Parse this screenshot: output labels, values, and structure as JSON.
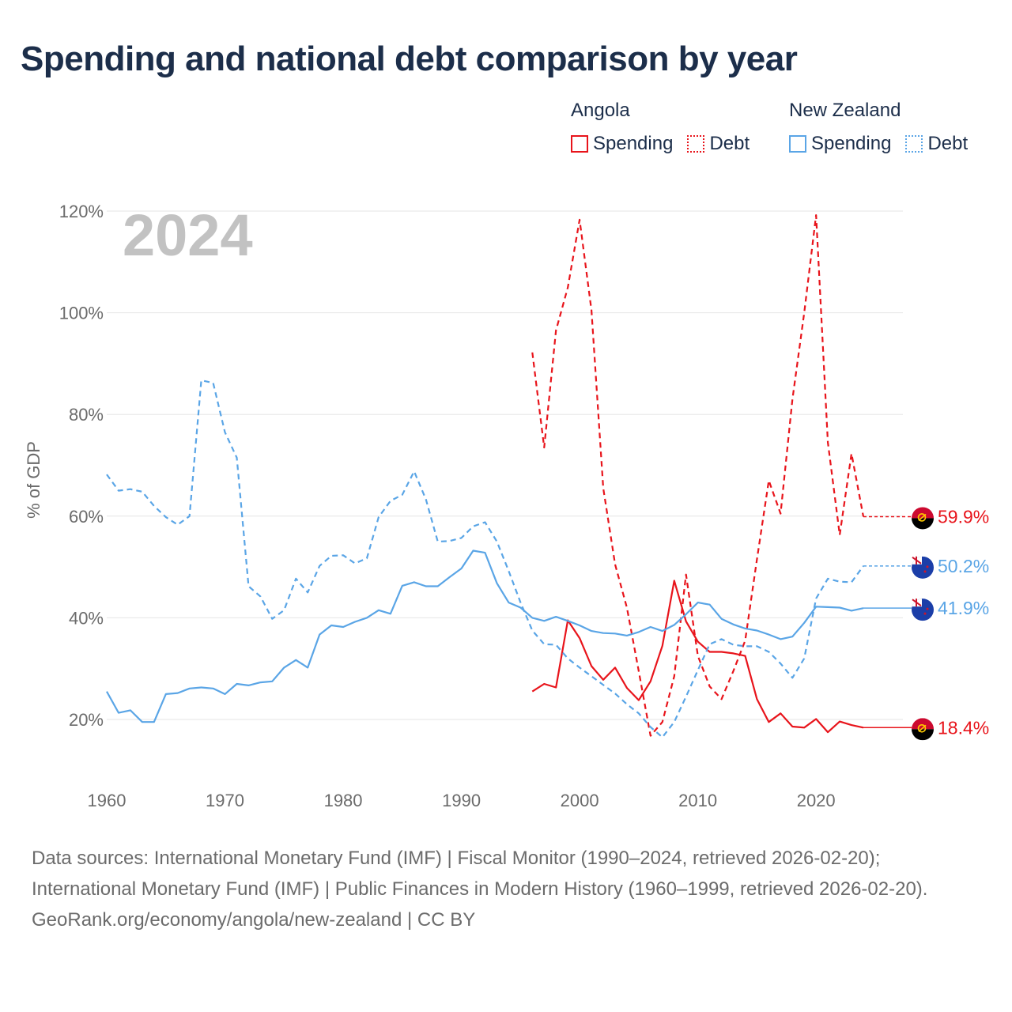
{
  "title": "Spending and national debt comparison by year",
  "colors": {
    "angola": "#e8141b",
    "new_zealand": "#5aa5e6",
    "title": "#1c2e4a",
    "grid": "#e6e6e6",
    "axis_text": "#6b6b6b",
    "year_watermark": "#c2c2c2"
  },
  "legend": {
    "groups": [
      {
        "name": "Angola",
        "spending_label": "Spending",
        "debt_label": "Debt"
      },
      {
        "name": "New Zealand",
        "spending_label": "Spending",
        "debt_label": "Debt"
      }
    ]
  },
  "year_label": "2024",
  "footer": {
    "sources": "Data sources: International Monetary Fund (IMF) | Fiscal Monitor (1990–2024, retrieved 2026-02-20); International Monetary Fund (IMF) | Public Finances in Modern History (1960–1999, retrieved 2026-02-20).",
    "credit": "GeoRank.org/economy/angola/new-zealand | CC BY"
  },
  "chart_data": {
    "type": "line",
    "title": "Spending and national debt comparison by year",
    "xlabel": "",
    "ylabel": "% of GDP",
    "xlim": [
      1960,
      2025
    ],
    "ylim": [
      10,
      120
    ],
    "xticks": [
      1960,
      1970,
      1980,
      1990,
      2000,
      2010,
      2020
    ],
    "yticks": [
      20,
      40,
      60,
      80,
      100,
      120
    ],
    "ytick_labels": [
      "20%",
      "40%",
      "60%",
      "80%",
      "100%",
      "120%"
    ],
    "grid": true,
    "legend_position": "top-right",
    "series": [
      {
        "name": "Angola Spending",
        "country": "Angola",
        "metric": "Spending",
        "color_key": "angola",
        "dash": "solid",
        "end_label": "18.4%",
        "x": [
          1996,
          1997,
          1998,
          1999,
          2000,
          2001,
          2002,
          2003,
          2004,
          2005,
          2006,
          2007,
          2008,
          2009,
          2010,
          2011,
          2012,
          2013,
          2014,
          2015,
          2016,
          2017,
          2018,
          2019,
          2020,
          2021,
          2022,
          2023,
          2024
        ],
        "values": [
          25.5,
          27,
          26.3,
          39.5,
          36,
          30.5,
          27.8,
          30.2,
          26.2,
          23.8,
          27.5,
          34.5,
          47.3,
          39.3,
          35.3,
          33.3,
          33.3,
          33,
          32.5,
          24,
          19.5,
          21.2,
          18.6,
          18.4,
          20.1,
          17.5,
          19.6,
          18.9,
          18.4
        ]
      },
      {
        "name": "Angola Debt",
        "country": "Angola",
        "metric": "Debt",
        "color_key": "angola",
        "dash": "dashed",
        "end_label": "59.9%",
        "x": [
          1996,
          1997,
          1998,
          1999,
          2000,
          2001,
          2002,
          2003,
          2004,
          2005,
          2006,
          2007,
          2008,
          2009,
          2010,
          2011,
          2012,
          2013,
          2014,
          2015,
          2016,
          2017,
          2018,
          2019,
          2020,
          2021,
          2022,
          2023,
          2024
        ],
        "values": [
          92.2,
          73.5,
          96.5,
          105,
          118.3,
          100.5,
          65.5,
          50.5,
          42,
          29.5,
          16.8,
          19.5,
          28.5,
          48.5,
          32.5,
          26.5,
          24,
          29.5,
          35.5,
          51.5,
          67,
          60.5,
          83,
          100,
          119.2,
          74.5,
          56.3,
          72.3,
          59.9
        ]
      },
      {
        "name": "New Zealand Spending",
        "country": "New Zealand",
        "metric": "Spending",
        "color_key": "new_zealand",
        "dash": "solid",
        "end_label": "41.9%",
        "x": [
          1960,
          1961,
          1962,
          1963,
          1964,
          1965,
          1966,
          1967,
          1968,
          1969,
          1970,
          1971,
          1972,
          1973,
          1974,
          1975,
          1976,
          1977,
          1978,
          1979,
          1980,
          1981,
          1982,
          1983,
          1984,
          1985,
          1986,
          1987,
          1988,
          1989,
          1990,
          1991,
          1992,
          1993,
          1994,
          1995,
          1996,
          1997,
          1998,
          1999,
          2000,
          2001,
          2002,
          2003,
          2004,
          2005,
          2006,
          2007,
          2008,
          2009,
          2010,
          2011,
          2012,
          2013,
          2014,
          2015,
          2016,
          2017,
          2018,
          2019,
          2020,
          2021,
          2022,
          2023,
          2024
        ],
        "values": [
          25.5,
          21.3,
          21.8,
          19.5,
          19.5,
          25,
          25.2,
          26.1,
          26.3,
          26.1,
          25,
          27,
          26.7,
          27.3,
          27.5,
          30.2,
          31.7,
          30.2,
          36.7,
          38.5,
          38.2,
          39.2,
          40,
          41.5,
          40.8,
          46.3,
          47,
          46.2,
          46.2,
          48,
          49.7,
          53.2,
          52.8,
          46.8,
          43,
          42,
          40,
          39.4,
          40.2,
          39.4,
          38.5,
          37.4,
          37,
          36.9,
          36.5,
          37.2,
          38.2,
          37.4,
          38.6,
          40.7,
          43,
          42.6,
          39.8,
          38.7,
          37.9,
          37.5,
          36.7,
          35.8,
          36.3,
          39,
          42.2,
          42.1,
          42,
          41.4,
          41.9
        ]
      },
      {
        "name": "New Zealand Debt",
        "country": "New Zealand",
        "metric": "Debt",
        "color_key": "new_zealand",
        "dash": "dashed",
        "end_label": "50.2%",
        "x": [
          1960,
          1961,
          1962,
          1963,
          1964,
          1965,
          1966,
          1967,
          1968,
          1969,
          1970,
          1971,
          1972,
          1973,
          1974,
          1975,
          1976,
          1977,
          1978,
          1979,
          1980,
          1981,
          1982,
          1983,
          1984,
          1985,
          1986,
          1987,
          1988,
          1989,
          1990,
          1991,
          1992,
          1993,
          1994,
          1995,
          1996,
          1997,
          1998,
          1999,
          2000,
          2001,
          2002,
          2003,
          2004,
          2005,
          2006,
          2007,
          2008,
          2009,
          2010,
          2011,
          2012,
          2013,
          2014,
          2015,
          2016,
          2017,
          2018,
          2019,
          2020,
          2021,
          2022,
          2023,
          2024
        ],
        "values": [
          68.2,
          65,
          65.3,
          64.8,
          62,
          59.8,
          58.3,
          60,
          86.7,
          86.2,
          76.5,
          71.5,
          46.2,
          44.2,
          39.8,
          41.5,
          47.7,
          45,
          50.2,
          52.2,
          52.3,
          50.7,
          51.7,
          59.8,
          63,
          64.2,
          68.8,
          63.3,
          55,
          55.1,
          55.7,
          58,
          58.8,
          55,
          49.2,
          43,
          37.5,
          34.8,
          34.7,
          32,
          30.2,
          28.5,
          26.8,
          25.1,
          23,
          21.2,
          18.5,
          16.5,
          19.5,
          24.5,
          29.7,
          34.8,
          35.8,
          34.7,
          34.4,
          34.4,
          33.3,
          31,
          28.2,
          32,
          43.8,
          47.7,
          47.1,
          47,
          50.2
        ]
      }
    ]
  }
}
